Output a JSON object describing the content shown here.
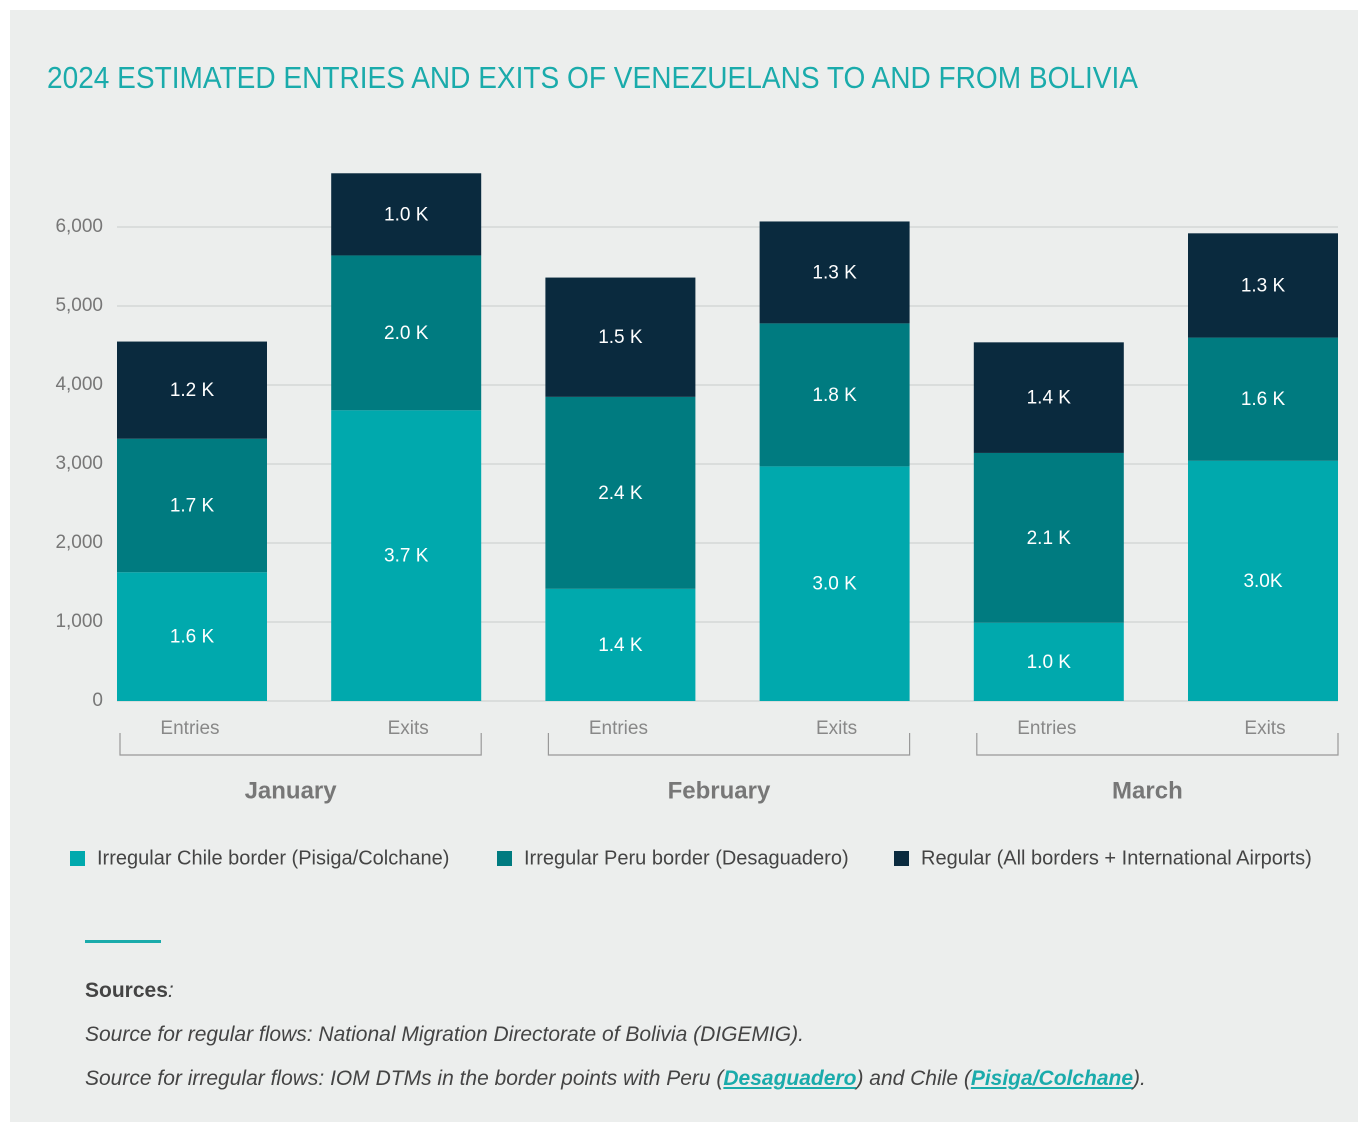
{
  "chart_data": {
    "type": "stacked_bar",
    "title": "2024 ESTIMATED ENTRIES AND EXITS OF VENEZUELANS TO AND FROM BOLIVIA",
    "categories": [
      "Entries",
      "Exits",
      "Entries",
      "Exits",
      "Entries",
      "Exits"
    ],
    "groups": [
      "January",
      "February",
      "March"
    ],
    "series": [
      {
        "name": "Irregular Chile border (Pisiga/Colchane)",
        "color": "#00a9ad",
        "values": [
          1630,
          3680,
          1420,
          2970,
          990,
          3040
        ],
        "value_labels": [
          "1.6 K",
          "3.7 K",
          "1.4 K",
          "3.0 K",
          "1.0 K",
          "3.0K"
        ]
      },
      {
        "name": "Irregular Peru border (Desaguadero)",
        "color": "#007b80",
        "values": [
          1690,
          1960,
          2430,
          1810,
          2150,
          1560
        ],
        "value_labels": [
          "1.7 K",
          "2.0 K",
          "2.4 K",
          "1.8 K",
          "2.1 K",
          "1.6 K"
        ]
      },
      {
        "name": "Regular (All borders + International Airports)",
        "color": "#0a2a3e",
        "values": [
          1230,
          1040,
          1510,
          1290,
          1400,
          1320
        ],
        "value_labels": [
          "1.2 K",
          "1.0 K",
          "1.5 K",
          "1.3 K",
          "1.4 K",
          "1.3 K"
        ]
      }
    ],
    "ylim": [
      0,
      6700
    ],
    "yticks": [
      0,
      {
        "value": 1000,
        "label": "1,000"
      },
      {
        "value": 2000,
        "label": "2,000"
      },
      {
        "value": 3000,
        "label": "3,000"
      },
      {
        "value": 4000,
        "label": "4,000"
      },
      {
        "value": 5000,
        "label": "5,000"
      },
      {
        "value": 6000,
        "label": "6,000"
      }
    ],
    "grid": true
  },
  "sources": {
    "title": "Sources",
    "title_suffix": ":",
    "lines": [
      [
        {
          "text": "Source for regular flows: National Migration Directorate of Bolivia (DIGEMIG)."
        }
      ],
      [
        {
          "text": "Source for irregular flows: IOM DTMs in the border points with Peru ("
        },
        {
          "text": "Desaguadero",
          "link": true
        },
        {
          "text": ") and Chile ("
        },
        {
          "text": "Pisiga/Colchane",
          "link": true
        },
        {
          "text": ")."
        }
      ]
    ]
  }
}
